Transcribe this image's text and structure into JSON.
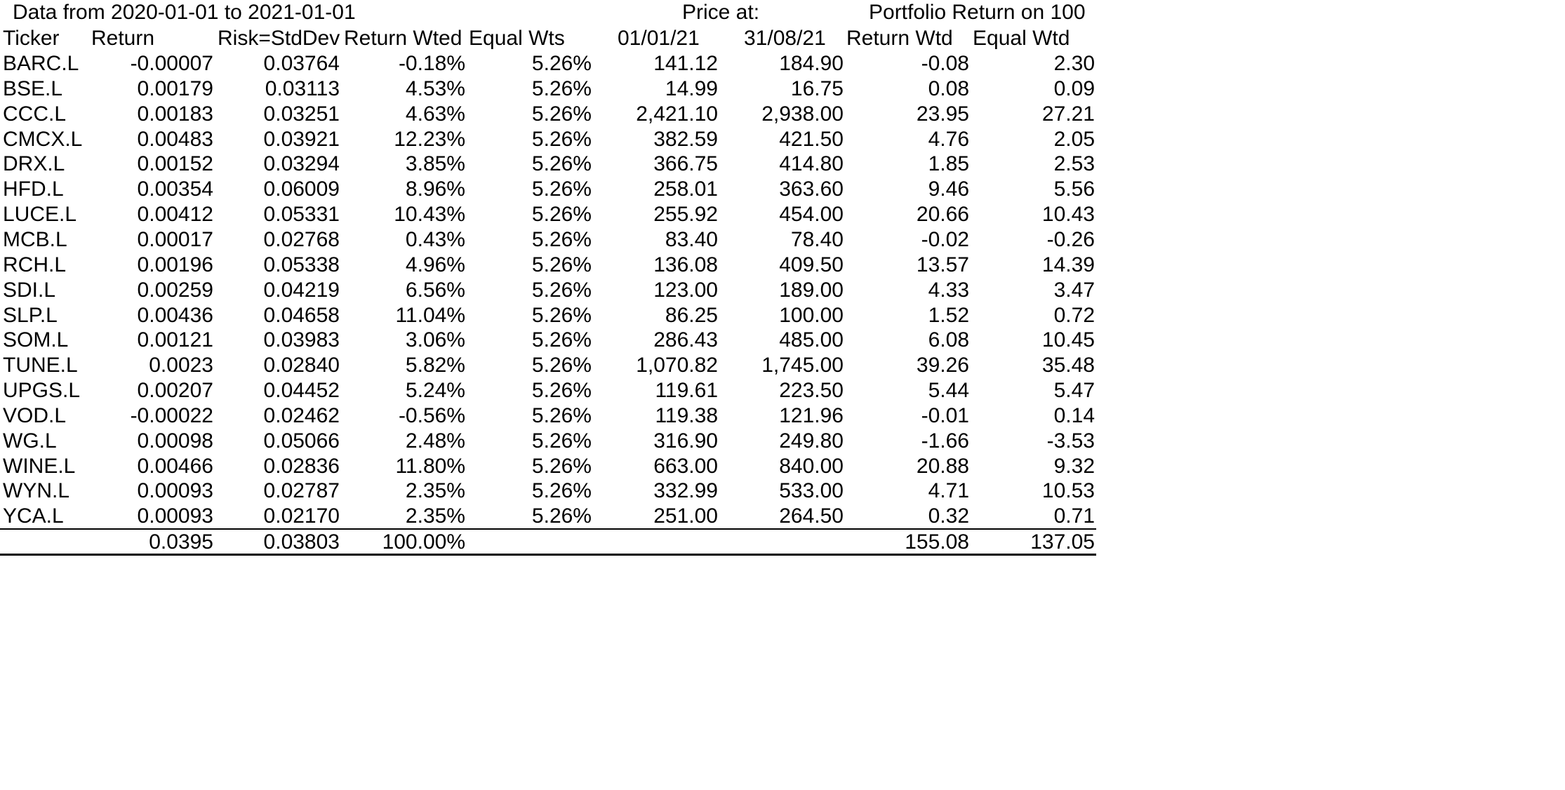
{
  "title_row": {
    "date_range": "Data from 2020-01-01 to 2021-01-01",
    "price_at": "Price at:",
    "portfolio_return": "Portfolio Return on 100"
  },
  "columns": [
    "Ticker",
    "Return",
    "Risk=StdDev",
    "Return Wted",
    "Equal Wts",
    "01/01/21",
    "31/08/21",
    "Return Wtd",
    "Equal Wtd"
  ],
  "rows": [
    [
      "BARC.L",
      "-0.00007",
      "0.03764",
      "-0.18%",
      "5.26%",
      "141.12",
      "184.90",
      "-0.08",
      "2.30"
    ],
    [
      "BSE.L",
      "0.00179",
      "0.03113",
      "4.53%",
      "5.26%",
      "14.99",
      "16.75",
      "0.08",
      "0.09"
    ],
    [
      "CCC.L",
      "0.00183",
      "0.03251",
      "4.63%",
      "5.26%",
      "2,421.10",
      "2,938.00",
      "23.95",
      "27.21"
    ],
    [
      "CMCX.L",
      "0.00483",
      "0.03921",
      "12.23%",
      "5.26%",
      "382.59",
      "421.50",
      "4.76",
      "2.05"
    ],
    [
      "DRX.L",
      "0.00152",
      "0.03294",
      "3.85%",
      "5.26%",
      "366.75",
      "414.80",
      "1.85",
      "2.53"
    ],
    [
      "HFD.L",
      "0.00354",
      "0.06009",
      "8.96%",
      "5.26%",
      "258.01",
      "363.60",
      "9.46",
      "5.56"
    ],
    [
      "LUCE.L",
      "0.00412",
      "0.05331",
      "10.43%",
      "5.26%",
      "255.92",
      "454.00",
      "20.66",
      "10.43"
    ],
    [
      "MCB.L",
      "0.00017",
      "0.02768",
      "0.43%",
      "5.26%",
      "83.40",
      "78.40",
      "-0.02",
      "-0.26"
    ],
    [
      "RCH.L",
      "0.00196",
      "0.05338",
      "4.96%",
      "5.26%",
      "136.08",
      "409.50",
      "13.57",
      "14.39"
    ],
    [
      "SDI.L",
      "0.00259",
      "0.04219",
      "6.56%",
      "5.26%",
      "123.00",
      "189.00",
      "4.33",
      "3.47"
    ],
    [
      "SLP.L",
      "0.00436",
      "0.04658",
      "11.04%",
      "5.26%",
      "86.25",
      "100.00",
      "1.52",
      "0.72"
    ],
    [
      "SOM.L",
      "0.00121",
      "0.03983",
      "3.06%",
      "5.26%",
      "286.43",
      "485.00",
      "6.08",
      "10.45"
    ],
    [
      "TUNE.L",
      "0.0023",
      "0.02840",
      "5.82%",
      "5.26%",
      "1,070.82",
      "1,745.00",
      "39.26",
      "35.48"
    ],
    [
      "UPGS.L",
      "0.00207",
      "0.04452",
      "5.24%",
      "5.26%",
      "119.61",
      "223.50",
      "5.44",
      "5.47"
    ],
    [
      "VOD.L",
      "-0.00022",
      "0.02462",
      "-0.56%",
      "5.26%",
      "119.38",
      "121.96",
      "-0.01",
      "0.14"
    ],
    [
      "WG.L",
      "0.00098",
      "0.05066",
      "2.48%",
      "5.26%",
      "316.90",
      "249.80",
      "-1.66",
      "-3.53"
    ],
    [
      "WINE.L",
      "0.00466",
      "0.02836",
      "11.80%",
      "5.26%",
      "663.00",
      "840.00",
      "20.88",
      "9.32"
    ],
    [
      "WYN.L",
      "0.00093",
      "0.02787",
      "2.35%",
      "5.26%",
      "332.99",
      "533.00",
      "4.71",
      "10.53"
    ],
    [
      "YCA.L",
      "0.00093",
      "0.02170",
      "2.35%",
      "5.26%",
      "251.00",
      "264.50",
      "0.32",
      "0.71"
    ]
  ],
  "totals": [
    "",
    "0.0395",
    "0.03803",
    "100.00%",
    "",
    "",
    "",
    "155.08",
    "137.05"
  ]
}
